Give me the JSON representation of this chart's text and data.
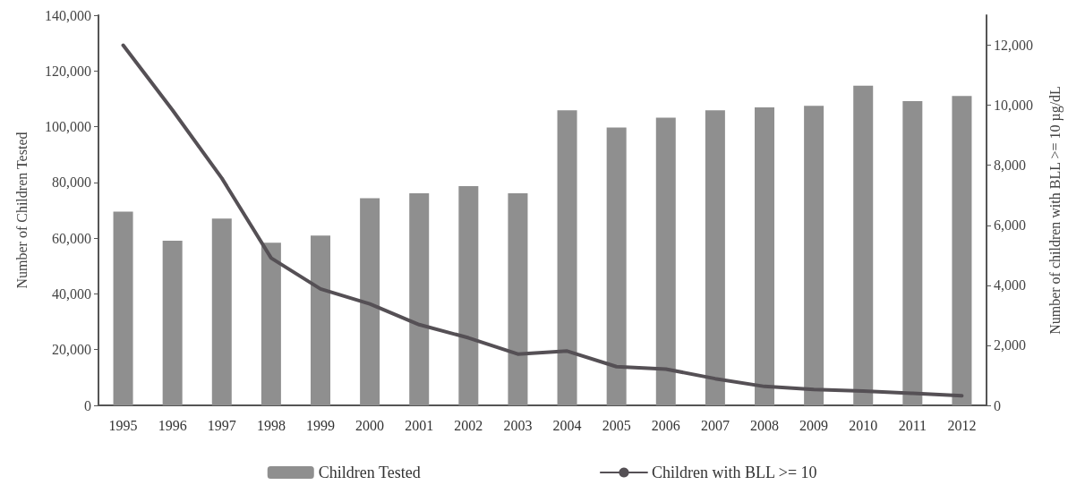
{
  "chart_data": {
    "type": "bar",
    "categories": [
      "1995",
      "1996",
      "1997",
      "1998",
      "1999",
      "2000",
      "2001",
      "2002",
      "2003",
      "2004",
      "2005",
      "2006",
      "2007",
      "2008",
      "2009",
      "2010",
      "2011",
      "2012"
    ],
    "series": [
      {
        "name": "Children Tested",
        "color": "#8f8f8f",
        "values": [
          69500,
          59100,
          67000,
          58400,
          60900,
          74300,
          76100,
          78700,
          76100,
          105900,
          99700,
          103200,
          105900,
          106900,
          107500,
          114700,
          109200,
          111000
        ]
      },
      {
        "name": "Children with BLL >= 10",
        "type": "line",
        "axis": "y2",
        "color": "#555055",
        "values": [
          12000,
          9840,
          7570,
          4910,
          3880,
          3380,
          2690,
          2250,
          1710,
          1810,
          1290,
          1210,
          890,
          630,
          530,
          480,
          400,
          320
        ]
      }
    ],
    "ylabel": "Number of Children Tested",
    "y2label": "Number of children with BLL >= 10 µg/dL",
    "ylim": [
      0,
      140000
    ],
    "yticks": [
      0,
      {
        "value": 20000,
        "label": "20,000"
      },
      {
        "value": 40000,
        "label": "40,000"
      },
      {
        "value": 60000,
        "label": "60,000"
      },
      {
        "value": 80000,
        "label": "80,000"
      },
      {
        "value": 100000,
        "label": "100,000"
      },
      {
        "value": 120000,
        "label": "120,000"
      },
      {
        "value": 140000,
        "label": "140,000"
      }
    ],
    "y2lim": [
      0,
      13000
    ],
    "y2ticks": [
      0,
      {
        "value": 2000,
        "label": "2,000"
      },
      {
        "value": 4000,
        "label": "4,000"
      },
      {
        "value": 6000,
        "label": "6,000"
      },
      {
        "value": 8000,
        "label": "8,000"
      },
      {
        "value": 10000,
        "label": "10,000"
      },
      {
        "value": 12000,
        "label": "12,000"
      }
    ],
    "grid": false,
    "legend": "bottom",
    "marker": "none",
    "line_style": "solid"
  }
}
